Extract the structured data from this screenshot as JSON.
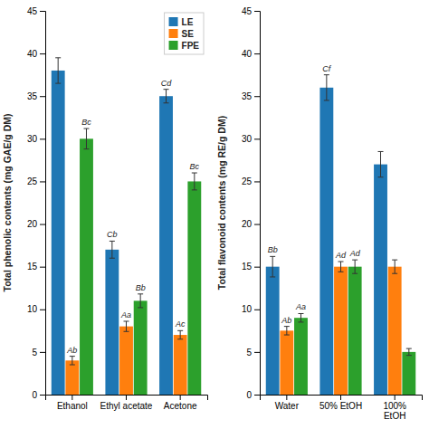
{
  "chart_data": [
    {
      "type": "bar",
      "categories": [
        "Ethanol",
        "Ethyl acetate",
        "Acetone"
      ],
      "series": [
        {
          "name": "LE",
          "values": [
            38,
            17,
            35
          ],
          "errors": [
            1.5,
            1.0,
            0.8
          ],
          "annotations": [
            null,
            "Cb",
            "Cd"
          ]
        },
        {
          "name": "SE",
          "values": [
            4,
            8,
            7
          ],
          "errors": [
            0.5,
            0.6,
            0.5
          ],
          "annotations": [
            "Ab",
            "Aa",
            "Ac"
          ]
        },
        {
          "name": "FPE",
          "values": [
            30,
            11,
            25
          ],
          "errors": [
            1.2,
            0.8,
            1.0
          ],
          "annotations": [
            "Bc",
            "Bb",
            "Bc"
          ]
        }
      ],
      "ylabel": "Total phenolic contents (mg GAE/g DM)",
      "ylim": [
        0,
        45
      ],
      "yticks": [
        0,
        5,
        10,
        15,
        20,
        25,
        30,
        35,
        40,
        45
      ],
      "grid": false,
      "legend": "upper right"
    },
    {
      "type": "bar",
      "categories": [
        "Water",
        "50% EtOH",
        "100%\nEtOH"
      ],
      "series": [
        {
          "name": "LE",
          "values": [
            15,
            36,
            27
          ],
          "errors": [
            1.2,
            1.5,
            1.5
          ],
          "annotations": [
            "Bb",
            "Cf",
            null
          ]
        },
        {
          "name": "SE",
          "values": [
            7.5,
            15,
            15
          ],
          "errors": [
            0.5,
            0.6,
            0.8
          ],
          "annotations": [
            "Ab",
            "Ad",
            null
          ]
        },
        {
          "name": "FPE",
          "values": [
            9,
            15,
            5
          ],
          "errors": [
            0.5,
            0.8,
            0.4
          ],
          "annotations": [
            "Aa",
            "Ad",
            null
          ]
        }
      ],
      "ylabel": "Total flavonoid contents (mg RE/g DM)",
      "ylim": [
        0,
        45
      ],
      "yticks": [
        0,
        5,
        10,
        15,
        20,
        25,
        30,
        35,
        40,
        45
      ],
      "grid": false
    }
  ]
}
